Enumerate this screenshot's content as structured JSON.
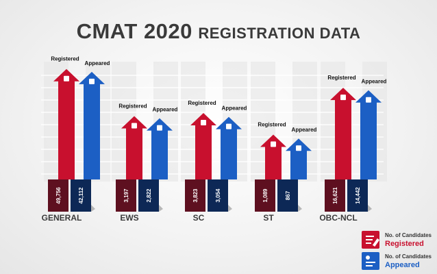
{
  "title": {
    "main": "CMAT 2020",
    "sub": "REGISTRATION DATA"
  },
  "chart_data": {
    "type": "bar",
    "categories": [
      "GENERAL",
      "EWS",
      "SC",
      "ST",
      "OBC-NCL"
    ],
    "series": [
      {
        "name": "Registered",
        "values": [
          49756,
          3197,
          3823,
          1089,
          16621
        ],
        "labels": [
          "49,756",
          "3,197",
          "3,823",
          "1,089",
          "16,621"
        ],
        "color": "#c8102e"
      },
      {
        "name": "Appeared",
        "values": [
          42112,
          2822,
          3054,
          867,
          14442
        ],
        "labels": [
          "42,112",
          "2,822",
          "3,054",
          "867",
          "14,442"
        ],
        "color": "#1c5fc4"
      }
    ],
    "arrow_labels": {
      "registered": "Registered",
      "appeared": "Appeared"
    },
    "box_colors": {
      "registered": "#5e1020",
      "appeared": "#0d2856"
    },
    "note": ""
  },
  "legend": {
    "caption": "No. of Candidates",
    "registered": "Registered",
    "appeared": "Appeared",
    "registered_icon": "form-icon",
    "appeared_icon": "user-card-icon"
  }
}
